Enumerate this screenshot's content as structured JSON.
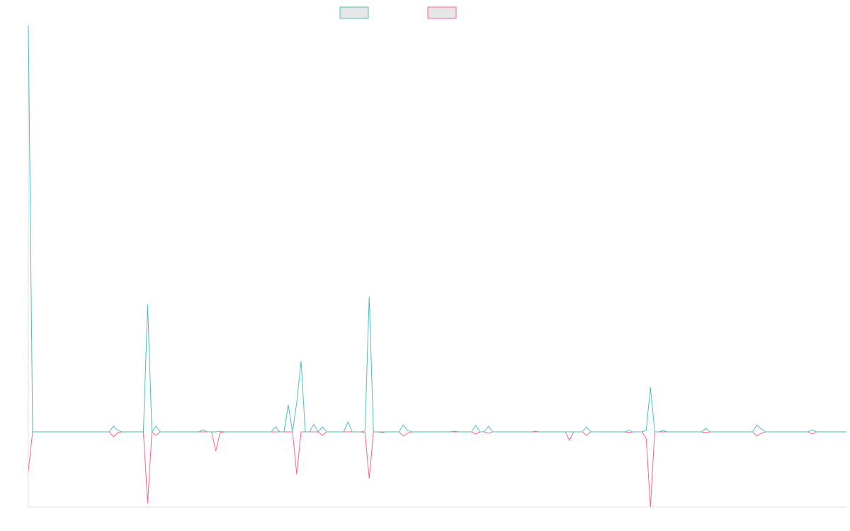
{
  "chart_data": {
    "type": "line",
    "ylim": [
      -10.6,
      57.4
    ],
    "legend": "top",
    "series": [
      {
        "color": "#ff6384",
        "values": [
          -5.5,
          0,
          0,
          0,
          0,
          0,
          0,
          0,
          0,
          0,
          0,
          0,
          0,
          0,
          0,
          0,
          0,
          0,
          0,
          0,
          -0.7,
          -0.1,
          0,
          0,
          0,
          0,
          0,
          0,
          -10.1,
          0,
          -0.5,
          0,
          0,
          0,
          0,
          0,
          0,
          0,
          0,
          0,
          0,
          0,
          0,
          0,
          -2.7,
          -0.1,
          0,
          0,
          0,
          0,
          0,
          0,
          0,
          0,
          0,
          0,
          0,
          0,
          0,
          0,
          0,
          0,
          0,
          -6,
          0,
          0,
          0,
          0,
          0,
          -0.5,
          0,
          0,
          0,
          0,
          0,
          0,
          0,
          0,
          0,
          -0.1,
          -6.6,
          0,
          0,
          -0.1,
          0,
          0,
          0,
          0,
          -0.6,
          -0.2,
          0,
          0,
          0,
          0,
          0,
          0,
          0,
          0,
          0,
          0,
          0,
          0,
          0,
          0,
          0,
          -0.3,
          0,
          0,
          -0.2,
          0,
          0,
          0,
          0,
          0,
          0,
          0,
          0,
          0,
          0,
          0,
          0,
          0,
          0,
          0,
          0,
          0,
          0,
          -1.2,
          0,
          0,
          0,
          -0.5,
          0,
          0,
          0,
          0,
          0,
          0,
          0,
          0,
          0,
          -0.1,
          0,
          0,
          0,
          -0.9,
          -10.6,
          0,
          0,
          0,
          0,
          0,
          0,
          0,
          0,
          0,
          0,
          0,
          0,
          -0.1,
          0,
          0,
          0,
          0,
          0,
          0,
          0,
          0,
          0,
          0,
          0,
          -0.6,
          -0.2,
          0,
          0,
          0,
          0,
          0,
          0,
          0,
          0,
          0,
          0,
          0,
          -0.3,
          0,
          0,
          0,
          0,
          0,
          0,
          0,
          0
        ]
      },
      {
        "color": "#4bc0c0",
        "values": [
          57.4,
          0,
          0,
          0,
          0,
          0,
          0,
          0,
          0,
          0,
          0,
          0,
          0,
          0,
          0,
          0,
          0,
          0,
          0,
          0,
          0.8,
          0.2,
          0,
          0,
          0,
          0,
          0,
          0,
          18,
          0,
          0.8,
          0,
          0,
          0,
          0,
          0,
          0,
          0,
          0,
          0,
          0,
          0.3,
          0,
          0,
          0,
          0.1,
          0,
          0,
          0,
          0,
          0,
          0,
          0,
          0,
          0,
          0,
          0,
          0,
          0.7,
          0,
          0,
          3.8,
          0,
          4.2,
          10,
          0,
          0,
          1.1,
          0,
          0.7,
          0,
          0,
          0,
          0,
          0,
          1.4,
          0,
          0,
          0,
          0.1,
          19.1,
          0,
          0,
          0,
          0,
          0,
          0,
          0,
          1,
          0.2,
          0,
          0,
          0,
          0,
          0,
          0,
          0,
          0,
          0,
          0,
          0.1,
          0,
          0,
          0,
          0,
          0.9,
          0,
          0,
          0.8,
          0,
          0,
          0,
          0,
          0,
          0,
          0,
          0,
          0,
          0,
          0.1,
          0,
          0,
          0,
          0,
          0,
          0,
          0,
          0,
          0,
          0,
          0,
          0.7,
          0,
          0,
          0,
          0,
          0,
          0,
          0,
          0,
          0,
          0.2,
          0,
          0,
          0,
          0.2,
          6.3,
          0,
          0,
          0.2,
          0,
          0,
          0,
          0,
          0,
          0,
          0,
          0,
          0,
          0.5,
          0,
          0,
          0,
          0,
          0,
          0,
          0,
          0,
          0,
          0,
          0,
          1,
          0.4,
          0,
          0,
          0,
          0,
          0,
          0,
          0,
          0,
          0,
          0,
          0,
          0.3,
          0,
          0,
          0,
          0,
          0,
          0,
          0,
          0
        ]
      }
    ]
  }
}
